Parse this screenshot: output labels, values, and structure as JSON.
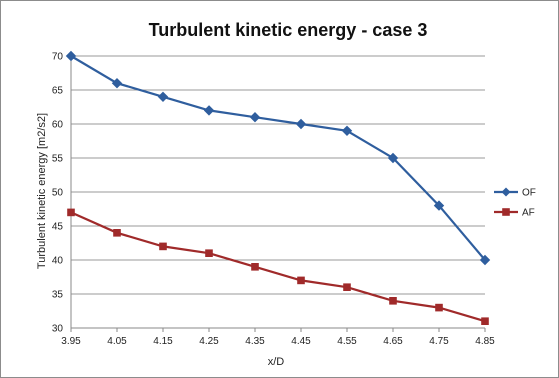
{
  "chart_data": {
    "type": "line",
    "title": "Turbulent kinetic energy - case 3",
    "xlabel": "x/D",
    "ylabel": "Turbulent kinetic energy [m2/s2]",
    "categories": [
      "3.95",
      "4.05",
      "4.15",
      "4.25",
      "4.35",
      "4.45",
      "4.55",
      "4.65",
      "4.75",
      "4.85"
    ],
    "ylim": [
      30,
      70
    ],
    "yticks": [
      "30",
      "35",
      "40",
      "45",
      "50",
      "55",
      "60",
      "65",
      "70"
    ],
    "grid": true,
    "legend_position": "right",
    "series": [
      {
        "name": "OF",
        "color": "#2f5e9e",
        "marker": "diamond",
        "values": [
          70,
          66,
          64,
          62,
          61,
          60,
          59,
          55,
          48,
          40
        ]
      },
      {
        "name": "AF",
        "color": "#a02a2a",
        "marker": "square",
        "values": [
          47,
          44,
          42,
          41,
          39,
          37,
          36,
          34,
          33,
          31
        ]
      }
    ]
  }
}
